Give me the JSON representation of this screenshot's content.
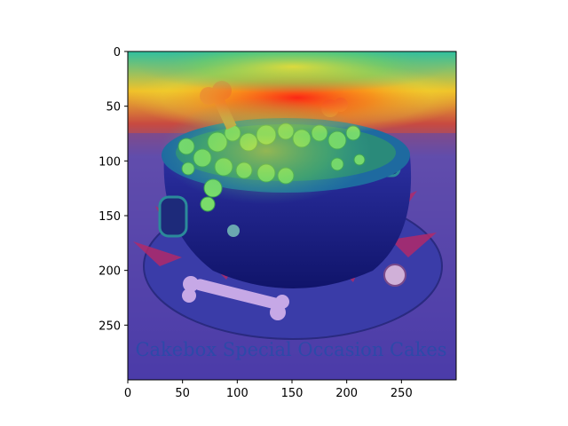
{
  "chart_data": {
    "type": "heatmap",
    "title": "",
    "xlabel": "",
    "ylabel": "",
    "xlim": [
      0,
      300
    ],
    "ylim": [
      300,
      0
    ],
    "y_inverted": true,
    "xticks": [
      0,
      50,
      100,
      150,
      200,
      250
    ],
    "yticks": [
      0,
      50,
      100,
      150,
      200,
      250
    ],
    "xtick_labels": [
      "0",
      "50",
      "100",
      "150",
      "200",
      "250"
    ],
    "ytick_labels": [
      "0",
      "50",
      "100",
      "150",
      "200",
      "250"
    ],
    "grid": false,
    "colormap": "jet",
    "overlay": "attention heatmap over photo",
    "hotspots": [
      {
        "x": 120,
        "y": 40,
        "intensity": 1.0
      },
      {
        "x": 165,
        "y": 40,
        "intensity": 0.95
      },
      {
        "x": 70,
        "y": 45,
        "intensity": 0.85
      },
      {
        "x": 215,
        "y": 40,
        "intensity": 0.75
      },
      {
        "x": 150,
        "y": 10,
        "intensity": 0.6
      },
      {
        "x": 125,
        "y": 95,
        "intensity": 0.55
      },
      {
        "x": 60,
        "y": 110,
        "intensity": 0.4
      }
    ]
  },
  "image_caption": "Cakebox Special Occasion Cakes",
  "colors": {
    "hot": "#e0141e",
    "warm": "#f4d02a",
    "mid": "#4cc468",
    "cool": "#2a5ad8",
    "cold": "#301a9a",
    "background": "#ffffff"
  }
}
